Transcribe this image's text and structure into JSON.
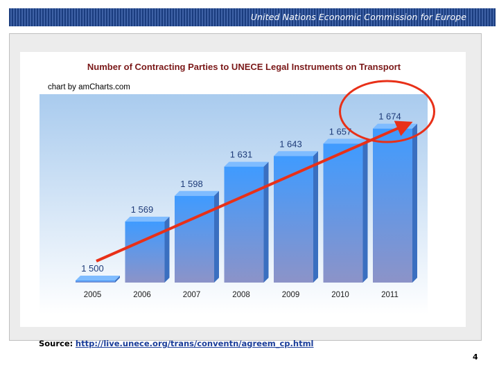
{
  "header": {
    "text": "United Nations Economic Commission for Europe"
  },
  "footer": {
    "source_label": "Source:",
    "source_url": "http://live.unece.org/trans/conventn/agreem_cp.html",
    "page_number": "4"
  },
  "chart_data": {
    "type": "bar",
    "title": "Number of Contracting Parties to UNECE Legal Instruments on Transport",
    "credit": "chart by amCharts.com",
    "categories": [
      "2005",
      "2006",
      "2007",
      "2008",
      "2009",
      "2010",
      "2011"
    ],
    "values": [
      1500,
      1569,
      1598,
      1631,
      1643,
      1657,
      1674
    ],
    "value_labels": [
      "1 500",
      "1 569",
      "1 598",
      "1 631",
      "1 643",
      "1 657",
      "1 674"
    ],
    "ylim": [
      1500,
      1680
    ],
    "grid": false,
    "colors": {
      "bar_top": "#3f9bff",
      "bar_bottom": "#8c93c8",
      "plot_top": "#a9cbee",
      "plot_bottom": "#ffffff",
      "title": "#7a1818",
      "trend_arrow": "#e83018",
      "highlight_circle": "#e83018"
    }
  }
}
